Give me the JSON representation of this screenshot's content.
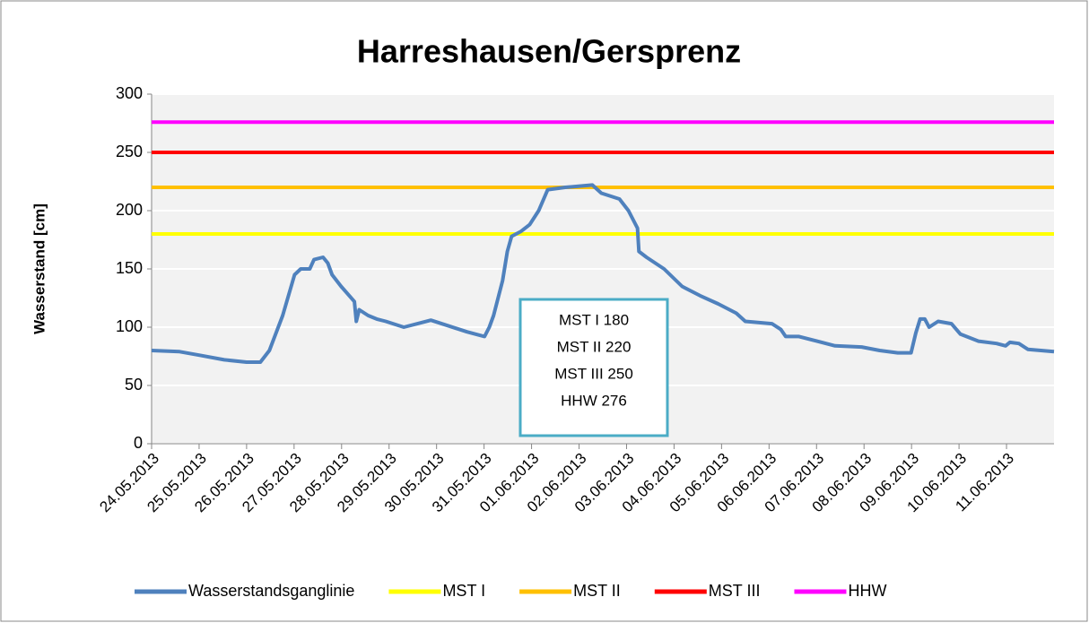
{
  "chart_data": {
    "type": "line",
    "title": "Harreshausen/Gersprenz",
    "y_label": "Wasserstand [cm]",
    "ylim": [
      0,
      300
    ],
    "yticks": [
      0,
      50,
      100,
      150,
      200,
      250,
      300
    ],
    "grid": true,
    "xlim": [
      0,
      19
    ],
    "xticks": [
      {
        "value": 0,
        "label": "24.05.2013"
      },
      {
        "value": 1,
        "label": "25.05.2013"
      },
      {
        "value": 2,
        "label": "26.05.2013"
      },
      {
        "value": 3,
        "label": "27.05.2013"
      },
      {
        "value": 4,
        "label": "28.05.2013"
      },
      {
        "value": 5,
        "label": "29.05.2013"
      },
      {
        "value": 6,
        "label": "30.05.2013"
      },
      {
        "value": 7,
        "label": "31.05.2013"
      },
      {
        "value": 8,
        "label": "01.06.2013"
      },
      {
        "value": 9,
        "label": "02.06.2013"
      },
      {
        "value": 10,
        "label": "03.06.2013"
      },
      {
        "value": 11,
        "label": "04.06.2013"
      },
      {
        "value": 12,
        "label": "05.06.2013"
      },
      {
        "value": 13,
        "label": "06.06.2013"
      },
      {
        "value": 14,
        "label": "07.06.2013"
      },
      {
        "value": 15,
        "label": "08.06.2013"
      },
      {
        "value": 16,
        "label": "09.06.2013"
      },
      {
        "value": 17,
        "label": "10.06.2013"
      },
      {
        "value": 18,
        "label": "11.06.2013"
      }
    ],
    "legend": "bottom",
    "series": [
      {
        "name": "Wasserstandsganglinie",
        "color": "#4f81bd",
        "x": [
          0,
          0.59,
          1,
          1.53,
          2,
          2.29,
          2.48,
          2.76,
          3.01,
          3.14,
          3.33,
          3.42,
          3.61,
          3.71,
          3.8,
          3.99,
          4.27,
          4.31,
          4.37,
          4.56,
          4.74,
          4.93,
          5.31,
          5.69,
          5.88,
          6.26,
          6.64,
          7.01,
          7.11,
          7.2,
          7.39,
          7.49,
          7.58,
          7.77,
          7.96,
          8.15,
          8.34,
          8.71,
          9.28,
          9.47,
          9.85,
          10.04,
          10.23,
          10.26,
          10.42,
          10.79,
          11.17,
          11.55,
          11.93,
          12.31,
          12.5,
          13.06,
          13.25,
          13.35,
          13.63,
          14.01,
          14.39,
          14.95,
          15.33,
          15.71,
          15.99,
          16.09,
          16.18,
          16.28,
          16.37,
          16.56,
          16.84,
          17.03,
          17.41,
          17.79,
          17.98,
          18.07,
          18.26,
          18.45,
          19
        ],
        "values": [
          80,
          79,
          76,
          72,
          70,
          70,
          80,
          110,
          145,
          150,
          150,
          158,
          160,
          155,
          145,
          135,
          122,
          105,
          115,
          110,
          107,
          105,
          100,
          104,
          106,
          101,
          96,
          92,
          100,
          110,
          140,
          165,
          178,
          182,
          188,
          200,
          218,
          220,
          222,
          215,
          210,
          200,
          185,
          165,
          160,
          150,
          135,
          127,
          120,
          112,
          105,
          103,
          98,
          92,
          92,
          88,
          84,
          83,
          80,
          78,
          78,
          95,
          107,
          107,
          100,
          105,
          103,
          94,
          88,
          86,
          84,
          87,
          86,
          81,
          79
        ]
      },
      {
        "name": "MST I",
        "color": "#ffff00",
        "x": [
          0,
          19
        ],
        "values": [
          180,
          180
        ]
      },
      {
        "name": "MST II",
        "color": "#ffc000",
        "x": [
          0,
          19
        ],
        "values": [
          220,
          220
        ]
      },
      {
        "name": "MST III",
        "color": "#ff0000",
        "x": [
          0,
          19
        ],
        "values": [
          250,
          250
        ]
      },
      {
        "name": "HHW",
        "color": "#ff00ff",
        "x": [
          0,
          19
        ],
        "values": [
          276,
          276
        ]
      }
    ],
    "annotation": [
      "MST I 180",
      "MST II 220",
      "MST III 250",
      "HHW 276"
    ]
  }
}
